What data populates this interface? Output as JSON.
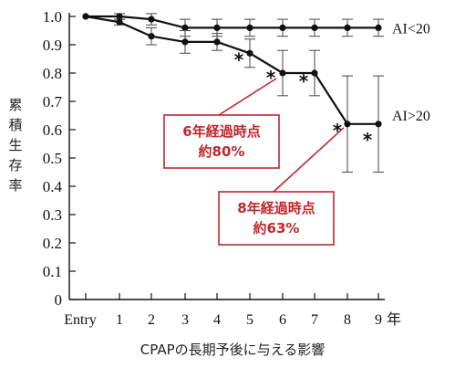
{
  "chart_data": {
    "type": "line",
    "title": "",
    "xlabel": "",
    "x_axis_title": "CPAPの長期予後に与える影響",
    "ylabel": "累積生存率",
    "ylabel_chars": [
      "累",
      "積",
      "生",
      "存",
      "率"
    ],
    "x_unit": "年",
    "ylim": [
      0,
      1.0
    ],
    "y_ticks": [
      "0",
      "0.1",
      "0.2",
      "0.3",
      "0.4",
      "0.5",
      "0.6",
      "0.7",
      "0.8",
      "0.9",
      "1.0"
    ],
    "categories": [
      "Entry",
      "1",
      "2",
      "3",
      "4",
      "5",
      "6",
      "7",
      "8",
      "9"
    ],
    "series": [
      {
        "name": "AI<20",
        "values": [
          1.0,
          1.0,
          0.99,
          0.96,
          0.96,
          0.96,
          0.96,
          0.96,
          0.96,
          0.96
        ],
        "error_plus": [
          0,
          0.01,
          0.02,
          0.03,
          0.03,
          0.03,
          0.03,
          0.03,
          0.03,
          0.03
        ],
        "error_minus": [
          0,
          0.01,
          0.02,
          0.03,
          0.03,
          0.03,
          0.03,
          0.03,
          0.03,
          0.03
        ],
        "marker": "filled-circle"
      },
      {
        "name": "AI>20",
        "values": [
          1.0,
          0.98,
          0.93,
          0.91,
          0.91,
          0.87,
          0.8,
          0.8,
          0.62,
          0.62
        ],
        "error_plus": [
          0,
          0.01,
          0.03,
          0.04,
          0.03,
          0.05,
          0.08,
          0.08,
          0.17,
          0.17
        ],
        "error_minus": [
          0,
          0.01,
          0.03,
          0.04,
          0.03,
          0.05,
          0.08,
          0.08,
          0.17,
          0.17
        ],
        "marker": "filled-circle",
        "significance_marks": [
          "5",
          "6",
          "7",
          "8",
          "9"
        ]
      }
    ],
    "grid": false,
    "significance_symbol": "*",
    "annotations": [
      {
        "lines": [
          "6年経過時点",
          "約80%"
        ],
        "points_to": "6"
      },
      {
        "lines": [
          "8年経過時点",
          "約63%"
        ],
        "points_to": "8"
      }
    ],
    "colors": {
      "line": "#111111",
      "callout": "#c0272d"
    }
  }
}
